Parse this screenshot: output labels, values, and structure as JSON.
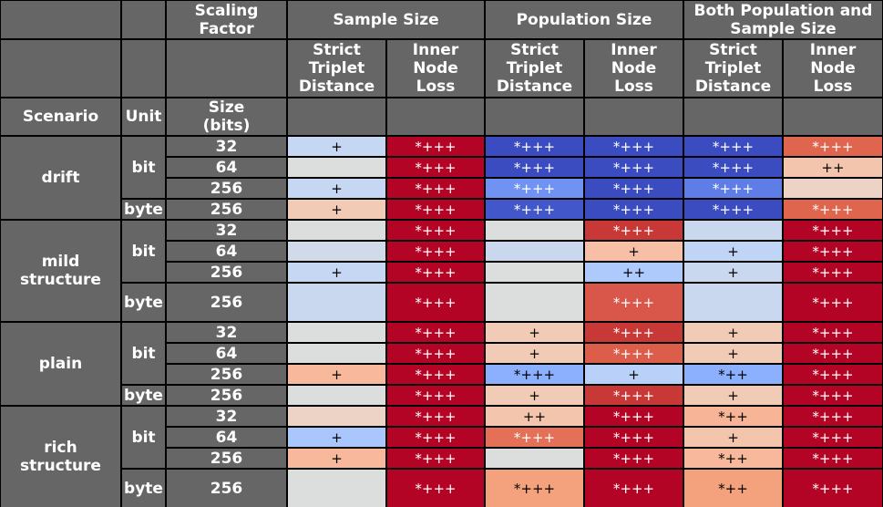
{
  "colors": {
    "header_bg": "#666666",
    "gridline": "#000000",
    "light_text": "#ffffff",
    "dark_text": "#000000"
  },
  "headers": {
    "scaling_factor": "Scaling\nFactor",
    "sample_size": "Sample Size",
    "population_size": "Population Size",
    "both": "Both Population and\nSample Size",
    "strict_triplet_distance": "Strict\nTriplet\nDistance",
    "inner_node_loss": "Inner\nNode\nLoss",
    "scenario": "Scenario",
    "unit": "Unit",
    "size_bits": "Size\n(bits)"
  },
  "chart_data": {
    "type": "table",
    "column_groups": [
      "Sample Size",
      "Population Size",
      "Both Population and Sample Size"
    ],
    "metrics": [
      "Strict Triplet Distance",
      "Inner Node Loss"
    ],
    "scenarios": [
      {
        "name": "drift",
        "units": [
          {
            "name": "bit",
            "rows": [
              {
                "size": "32",
                "cells": [
                  {
                    "text": "+",
                    "color": "#c5d7f2"
                  },
                  {
                    "text": "*+++",
                    "color": "#b40426"
                  },
                  {
                    "text": "*+++",
                    "color": "#3b4cc0"
                  },
                  {
                    "text": "*+++",
                    "color": "#3b4cc0"
                  },
                  {
                    "text": "*+++",
                    "color": "#3b4cc0"
                  },
                  {
                    "text": "*+++",
                    "color": "#e0654f"
                  }
                ]
              },
              {
                "size": "64",
                "cells": [
                  {
                    "text": "",
                    "color": "#dcdddd"
                  },
                  {
                    "text": "*+++",
                    "color": "#b40426"
                  },
                  {
                    "text": "*+++",
                    "color": "#3b4cc0"
                  },
                  {
                    "text": "*+++",
                    "color": "#3b4cc0"
                  },
                  {
                    "text": "*+++",
                    "color": "#3b4cc0"
                  },
                  {
                    "text": "++",
                    "color": "#f4c5ad"
                  }
                ]
              },
              {
                "size": "256",
                "cells": [
                  {
                    "text": "+",
                    "color": "#c5d7f2"
                  },
                  {
                    "text": "*+++",
                    "color": "#b40426"
                  },
                  {
                    "text": "*+++",
                    "color": "#6f92f3"
                  },
                  {
                    "text": "*+++",
                    "color": "#3b4cc0"
                  },
                  {
                    "text": "*+++",
                    "color": "#5e7de7"
                  },
                  {
                    "text": "",
                    "color": "#ecd3c5"
                  }
                ]
              }
            ]
          },
          {
            "name": "byte",
            "rows": [
              {
                "size": "256",
                "cells": [
                  {
                    "text": "+",
                    "color": "#f2cbb7"
                  },
                  {
                    "text": "*+++",
                    "color": "#b40426"
                  },
                  {
                    "text": "*+++",
                    "color": "#4257c9"
                  },
                  {
                    "text": "*+++",
                    "color": "#3b4cc0"
                  },
                  {
                    "text": "*+++",
                    "color": "#3b4cc0"
                  },
                  {
                    "text": "*+++",
                    "color": "#e0654f"
                  }
                ]
              }
            ]
          }
        ]
      },
      {
        "name": "mild\nstructure",
        "units": [
          {
            "name": "bit",
            "rows": [
              {
                "size": "32",
                "cells": [
                  {
                    "text": "",
                    "color": "#dcdddd"
                  },
                  {
                    "text": "*+++",
                    "color": "#b40426"
                  },
                  {
                    "text": "",
                    "color": "#dcdddd"
                  },
                  {
                    "text": "*+++",
                    "color": "#c83836"
                  },
                  {
                    "text": "",
                    "color": "#cad8ef"
                  },
                  {
                    "text": "*+++",
                    "color": "#b40426"
                  }
                ]
              },
              {
                "size": "64",
                "cells": [
                  {
                    "text": "",
                    "color": "#d1dae9"
                  },
                  {
                    "text": "*+++",
                    "color": "#b40426"
                  },
                  {
                    "text": "",
                    "color": "#cad8ef"
                  },
                  {
                    "text": "+",
                    "color": "#f6bfa6"
                  },
                  {
                    "text": "+",
                    "color": "#c0d4f5"
                  },
                  {
                    "text": "*+++",
                    "color": "#b40426"
                  }
                ]
              },
              {
                "size": "256",
                "cells": [
                  {
                    "text": "+",
                    "color": "#c5d7f2"
                  },
                  {
                    "text": "*+++",
                    "color": "#b40426"
                  },
                  {
                    "text": "",
                    "color": "#dcdddd"
                  },
                  {
                    "text": "++",
                    "color": "#aec9fc"
                  },
                  {
                    "text": "+",
                    "color": "#cad8ef"
                  },
                  {
                    "text": "*+++",
                    "color": "#b40426"
                  }
                ]
              }
            ]
          },
          {
            "name": "byte",
            "rows": [
              {
                "size": "256",
                "cells": [
                  {
                    "text": "",
                    "color": "#cad8ef"
                  },
                  {
                    "text": "*+++",
                    "color": "#b40426"
                  },
                  {
                    "text": "",
                    "color": "#dcdddd"
                  },
                  {
                    "text": "*+++",
                    "color": "#d8564a"
                  },
                  {
                    "text": "",
                    "color": "#cad8ef"
                  },
                  {
                    "text": "*+++",
                    "color": "#b40426"
                  }
                ]
              }
            ]
          }
        ]
      },
      {
        "name": "plain",
        "units": [
          {
            "name": "bit",
            "rows": [
              {
                "size": "32",
                "cells": [
                  {
                    "text": "",
                    "color": "#dcdddd"
                  },
                  {
                    "text": "*+++",
                    "color": "#b40426"
                  },
                  {
                    "text": "+",
                    "color": "#f2cbb7"
                  },
                  {
                    "text": "*+++",
                    "color": "#c83836"
                  },
                  {
                    "text": "+",
                    "color": "#f2cbb7"
                  },
                  {
                    "text": "*+++",
                    "color": "#b40426"
                  }
                ]
              },
              {
                "size": "64",
                "cells": [
                  {
                    "text": "",
                    "color": "#dcdddd"
                  },
                  {
                    "text": "*+++",
                    "color": "#b40426"
                  },
                  {
                    "text": "+",
                    "color": "#f2cbb7"
                  },
                  {
                    "text": "*+++",
                    "color": "#dc5d4a"
                  },
                  {
                    "text": "+",
                    "color": "#f2cbb7"
                  },
                  {
                    "text": "*+++",
                    "color": "#b40426"
                  }
                ]
              },
              {
                "size": "256",
                "cells": [
                  {
                    "text": "+",
                    "color": "#f7b89c"
                  },
                  {
                    "text": "*+++",
                    "color": "#b40426"
                  },
                  {
                    "text": "*+++",
                    "color": "#8caffe"
                  },
                  {
                    "text": "+",
                    "color": "#b9d0f9"
                  },
                  {
                    "text": "*++",
                    "color": "#8caffe"
                  },
                  {
                    "text": "*+++",
                    "color": "#b40426"
                  }
                ]
              }
            ]
          },
          {
            "name": "byte",
            "rows": [
              {
                "size": "256",
                "cells": [
                  {
                    "text": "",
                    "color": "#dcdddd"
                  },
                  {
                    "text": "*+++",
                    "color": "#b40426"
                  },
                  {
                    "text": "+",
                    "color": "#f2cbb7"
                  },
                  {
                    "text": "*+++",
                    "color": "#c83836"
                  },
                  {
                    "text": "+",
                    "color": "#f2cbb7"
                  },
                  {
                    "text": "*+++",
                    "color": "#b40426"
                  }
                ]
              }
            ]
          }
        ]
      },
      {
        "name": "rich\nstructure",
        "units": [
          {
            "name": "bit",
            "rows": [
              {
                "size": "32",
                "cells": [
                  {
                    "text": "",
                    "color": "#ecd3c5"
                  },
                  {
                    "text": "*+++",
                    "color": "#b40426"
                  },
                  {
                    "text": "++",
                    "color": "#f4c5ad"
                  },
                  {
                    "text": "*+++",
                    "color": "#b40426"
                  },
                  {
                    "text": "*++",
                    "color": "#f7b497"
                  },
                  {
                    "text": "*+++",
                    "color": "#b40426"
                  }
                ]
              },
              {
                "size": "64",
                "cells": [
                  {
                    "text": "+",
                    "color": "#a9c6fd"
                  },
                  {
                    "text": "*+++",
                    "color": "#b40426"
                  },
                  {
                    "text": "*+++",
                    "color": "#e57058"
                  },
                  {
                    "text": "*+++",
                    "color": "#b40426"
                  },
                  {
                    "text": "+",
                    "color": "#f4c5ad"
                  },
                  {
                    "text": "*+++",
                    "color": "#b40426"
                  }
                ]
              },
              {
                "size": "256",
                "cells": [
                  {
                    "text": "+",
                    "color": "#f7b89c"
                  },
                  {
                    "text": "*+++",
                    "color": "#b40426"
                  },
                  {
                    "text": "",
                    "color": "#dcdddd"
                  },
                  {
                    "text": "*+++",
                    "color": "#b40426"
                  },
                  {
                    "text": "*++",
                    "color": "#f7b89c"
                  },
                  {
                    "text": "*+++",
                    "color": "#b40426"
                  }
                ]
              }
            ]
          },
          {
            "name": "byte",
            "rows": [
              {
                "size": "256",
                "cells": [
                  {
                    "text": "",
                    "color": "#dcdddd"
                  },
                  {
                    "text": "*+++",
                    "color": "#b40426"
                  },
                  {
                    "text": "*+++",
                    "color": "#f4a27e"
                  },
                  {
                    "text": "*+++",
                    "color": "#b40426"
                  },
                  {
                    "text": "*++",
                    "color": "#f4a27e"
                  },
                  {
                    "text": "*+++",
                    "color": "#b40426"
                  }
                ]
              }
            ]
          }
        ]
      }
    ]
  }
}
